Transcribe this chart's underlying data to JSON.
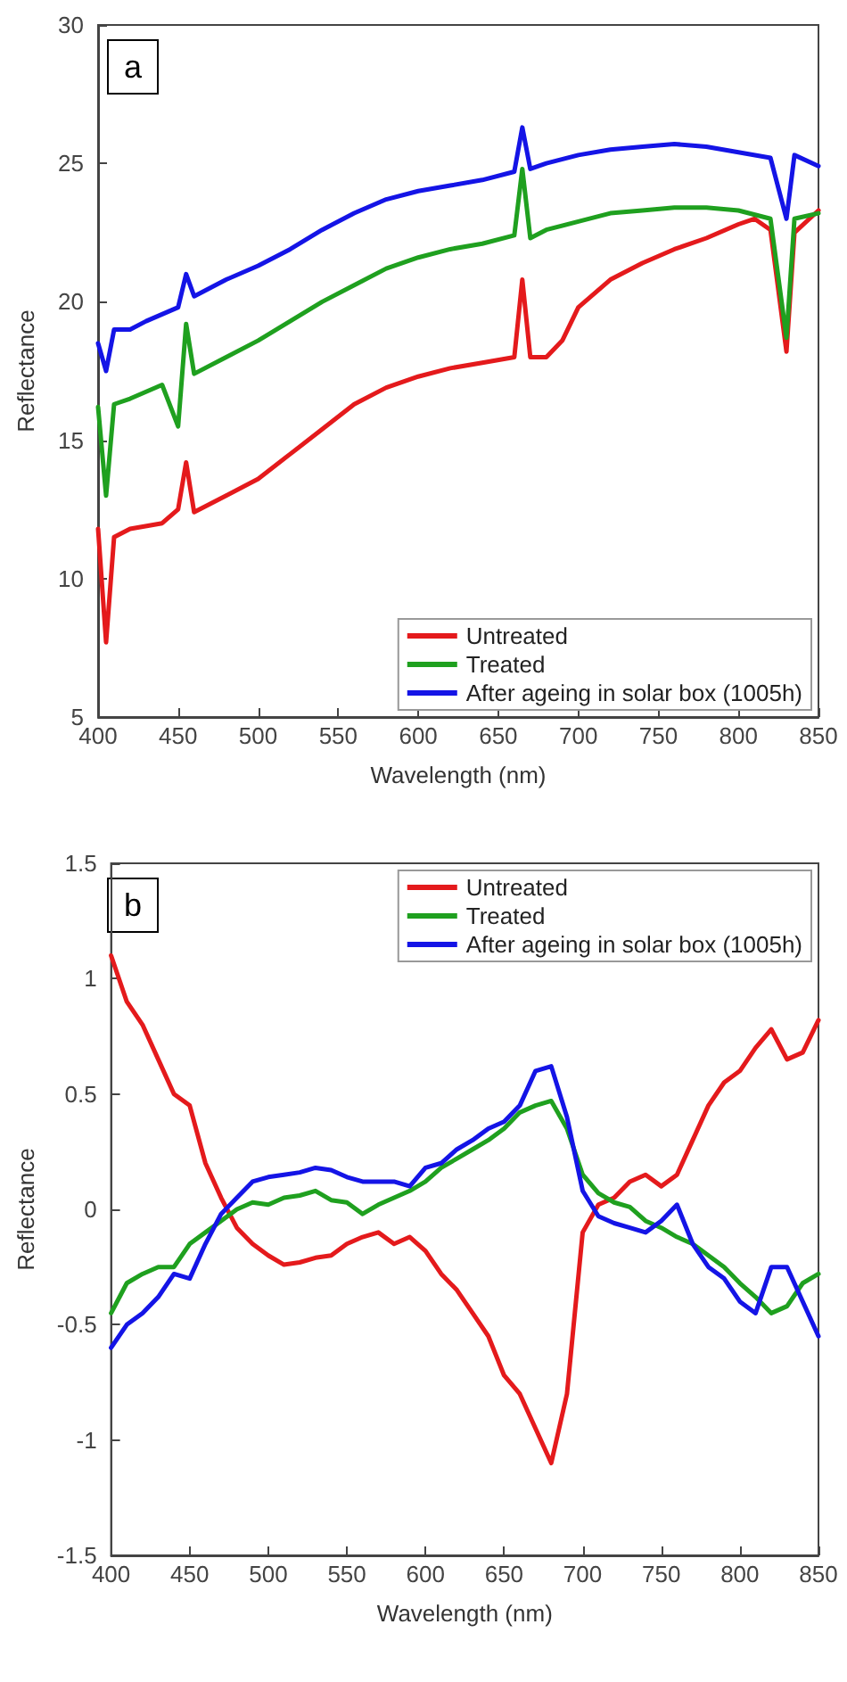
{
  "chart_data": [
    {
      "type": "line",
      "xlabel": "Wavelength (nm)",
      "ylabel": "Reflectance",
      "annotations": [
        "a"
      ],
      "xlim": [
        400,
        850
      ],
      "xticks": [
        400,
        450,
        500,
        550,
        600,
        650,
        700,
        750,
        800,
        850
      ],
      "ylim": [
        5,
        30
      ],
      "yticks": [
        5,
        10,
        15,
        20,
        25,
        30
      ],
      "grid": false,
      "legend": "bottom right",
      "marker": "none",
      "line_style": "solid",
      "series": [
        {
          "name": "Untreated",
          "color": "#e41a1c",
          "x": [
            400,
            405,
            410,
            420,
            440,
            450,
            455,
            460,
            480,
            500,
            520,
            540,
            560,
            580,
            600,
            620,
            640,
            660,
            665,
            670,
            680,
            690,
            700,
            720,
            740,
            760,
            780,
            800,
            810,
            820,
            830,
            835,
            850
          ],
          "values": [
            11.8,
            7.7,
            11.5,
            11.8,
            12.0,
            12.5,
            14.2,
            12.4,
            13.0,
            13.6,
            14.5,
            15.4,
            16.3,
            16.9,
            17.3,
            17.6,
            17.8,
            18.0,
            20.8,
            18.0,
            18.0,
            18.6,
            19.8,
            20.8,
            21.4,
            21.9,
            22.3,
            22.8,
            23.0,
            22.6,
            18.2,
            22.5,
            23.3
          ]
        },
        {
          "name": "Treated",
          "color": "#1fa01f",
          "x": [
            400,
            405,
            410,
            420,
            440,
            450,
            455,
            460,
            480,
            500,
            520,
            540,
            560,
            580,
            600,
            620,
            640,
            660,
            665,
            670,
            680,
            700,
            720,
            740,
            760,
            780,
            800,
            820,
            830,
            835,
            850
          ],
          "values": [
            16.2,
            13.0,
            16.3,
            16.5,
            17.0,
            15.5,
            19.2,
            17.4,
            18.0,
            18.6,
            19.3,
            20.0,
            20.6,
            21.2,
            21.6,
            21.9,
            22.1,
            22.4,
            24.8,
            22.3,
            22.6,
            22.9,
            23.2,
            23.3,
            23.4,
            23.4,
            23.3,
            23.0,
            18.7,
            23.0,
            23.2
          ]
        },
        {
          "name": "After ageing in solar box (1005h)",
          "color": "#1414e6",
          "x": [
            400,
            405,
            410,
            420,
            430,
            450,
            455,
            460,
            480,
            500,
            520,
            540,
            560,
            580,
            600,
            620,
            640,
            660,
            665,
            670,
            680,
            700,
            720,
            740,
            760,
            780,
            800,
            820,
            830,
            835,
            850
          ],
          "values": [
            18.5,
            17.5,
            19.0,
            19.0,
            19.3,
            19.8,
            21.0,
            20.2,
            20.8,
            21.3,
            21.9,
            22.6,
            23.2,
            23.7,
            24.0,
            24.2,
            24.4,
            24.7,
            26.3,
            24.8,
            25.0,
            25.3,
            25.5,
            25.6,
            25.7,
            25.6,
            25.4,
            25.2,
            23.0,
            25.3,
            24.9
          ]
        }
      ]
    },
    {
      "type": "line",
      "xlabel": "Wavelength (nm)",
      "ylabel": "Reflectance",
      "annotations": [
        "b"
      ],
      "xlim": [
        400,
        850
      ],
      "xticks": [
        400,
        450,
        500,
        550,
        600,
        650,
        700,
        750,
        800,
        850
      ],
      "ylim": [
        -1.5,
        1.5
      ],
      "yticks": [
        -1.5,
        -1,
        -0.5,
        0,
        0.5,
        1,
        1.5
      ],
      "grid": false,
      "legend": "top right",
      "marker": "none",
      "line_style": "solid",
      "x": [
        400,
        410,
        420,
        430,
        440,
        450,
        460,
        470,
        480,
        490,
        500,
        510,
        520,
        530,
        540,
        550,
        560,
        570,
        580,
        590,
        600,
        610,
        620,
        630,
        640,
        650,
        660,
        670,
        680,
        690,
        700,
        710,
        720,
        730,
        740,
        750,
        760,
        770,
        780,
        790,
        800,
        810,
        820,
        830,
        840,
        850
      ],
      "series": [
        {
          "name": "Untreated",
          "color": "#e41a1c",
          "values": [
            1.1,
            0.9,
            0.8,
            0.65,
            0.5,
            0.45,
            0.2,
            0.05,
            -0.08,
            -0.15,
            -0.2,
            -0.24,
            -0.23,
            -0.21,
            -0.2,
            -0.15,
            -0.12,
            -0.1,
            -0.15,
            -0.12,
            -0.18,
            -0.28,
            -0.35,
            -0.45,
            -0.55,
            -0.72,
            -0.8,
            -0.95,
            -1.1,
            -0.8,
            -0.1,
            0.02,
            0.05,
            0.12,
            0.15,
            0.1,
            0.15,
            0.3,
            0.45,
            0.55,
            0.6,
            0.7,
            0.78,
            0.65,
            0.68,
            0.82
          ]
        },
        {
          "name": "Treated",
          "color": "#1fa01f",
          "values": [
            -0.45,
            -0.32,
            -0.28,
            -0.25,
            -0.25,
            -0.15,
            -0.1,
            -0.05,
            0.0,
            0.03,
            0.02,
            0.05,
            0.06,
            0.08,
            0.04,
            0.03,
            -0.02,
            0.02,
            0.05,
            0.08,
            0.12,
            0.18,
            0.22,
            0.26,
            0.3,
            0.35,
            0.42,
            0.45,
            0.47,
            0.35,
            0.15,
            0.07,
            0.03,
            0.01,
            -0.05,
            -0.08,
            -0.12,
            -0.15,
            -0.2,
            -0.25,
            -0.32,
            -0.38,
            -0.45,
            -0.42,
            -0.32,
            -0.28
          ]
        },
        {
          "name": "After ageing in solar box (1005h)",
          "color": "#1414e6",
          "values": [
            -0.6,
            -0.5,
            -0.45,
            -0.38,
            -0.28,
            -0.3,
            -0.15,
            -0.02,
            0.05,
            0.12,
            0.14,
            0.15,
            0.16,
            0.18,
            0.17,
            0.14,
            0.12,
            0.12,
            0.12,
            0.1,
            0.18,
            0.2,
            0.26,
            0.3,
            0.35,
            0.38,
            0.45,
            0.6,
            0.62,
            0.4,
            0.08,
            -0.03,
            -0.06,
            -0.08,
            -0.1,
            -0.05,
            0.02,
            -0.15,
            -0.25,
            -0.3,
            -0.4,
            -0.45,
            -0.25,
            -0.25,
            -0.4,
            -0.55
          ]
        }
      ]
    }
  ]
}
